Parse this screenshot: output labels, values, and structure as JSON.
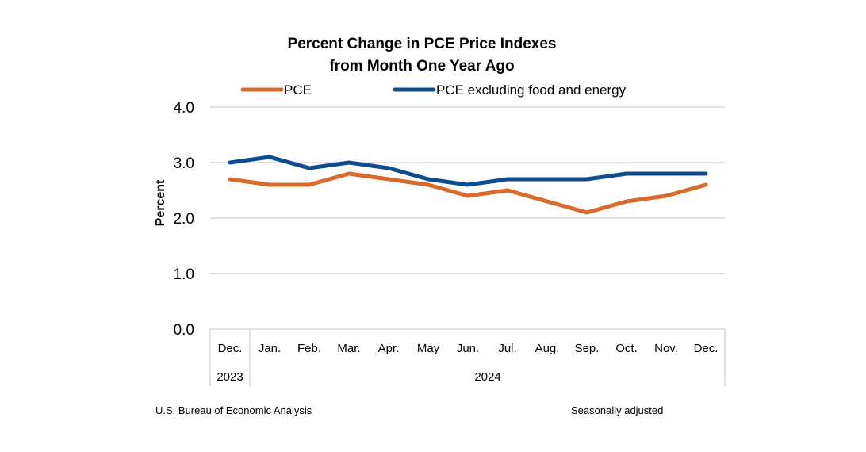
{
  "chart_data": {
    "type": "line",
    "title": [
      "Percent Change in PCE Price Indexes",
      "from Month One Year Ago"
    ],
    "xlabel": "",
    "ylabel": "Percent",
    "ylim": [
      0,
      4
    ],
    "yticks": [
      0,
      1,
      2,
      3,
      4
    ],
    "ytick_labels": [
      "0.0",
      "1.0",
      "2.0",
      "3.0",
      "4.0"
    ],
    "grid": true,
    "legend_position": "top",
    "categories": [
      "Dec.",
      "Jan.",
      "Feb.",
      "Mar.",
      "Apr.",
      "May",
      "Jun.",
      "Jul.",
      "Aug.",
      "Sep.",
      "Oct.",
      "Nov.",
      "Dec."
    ],
    "year_groups": [
      {
        "label": "2023",
        "start": 0,
        "end": 0
      },
      {
        "label": "2024",
        "start": 1,
        "end": 12
      }
    ],
    "series": [
      {
        "name": "PCE",
        "color": "#D86A2A",
        "values": [
          2.7,
          2.6,
          2.6,
          2.8,
          2.7,
          2.6,
          2.4,
          2.5,
          2.3,
          2.1,
          2.3,
          2.4,
          2.6
        ]
      },
      {
        "name": "PCE excluding food and energy",
        "color": "#0E4C8E",
        "values": [
          3.0,
          3.1,
          2.9,
          3.0,
          2.9,
          2.7,
          2.6,
          2.7,
          2.7,
          2.7,
          2.8,
          2.8,
          2.8
        ]
      }
    ],
    "source": "U.S. Bureau of Economic Analysis",
    "note": "Seasonally adjusted"
  }
}
